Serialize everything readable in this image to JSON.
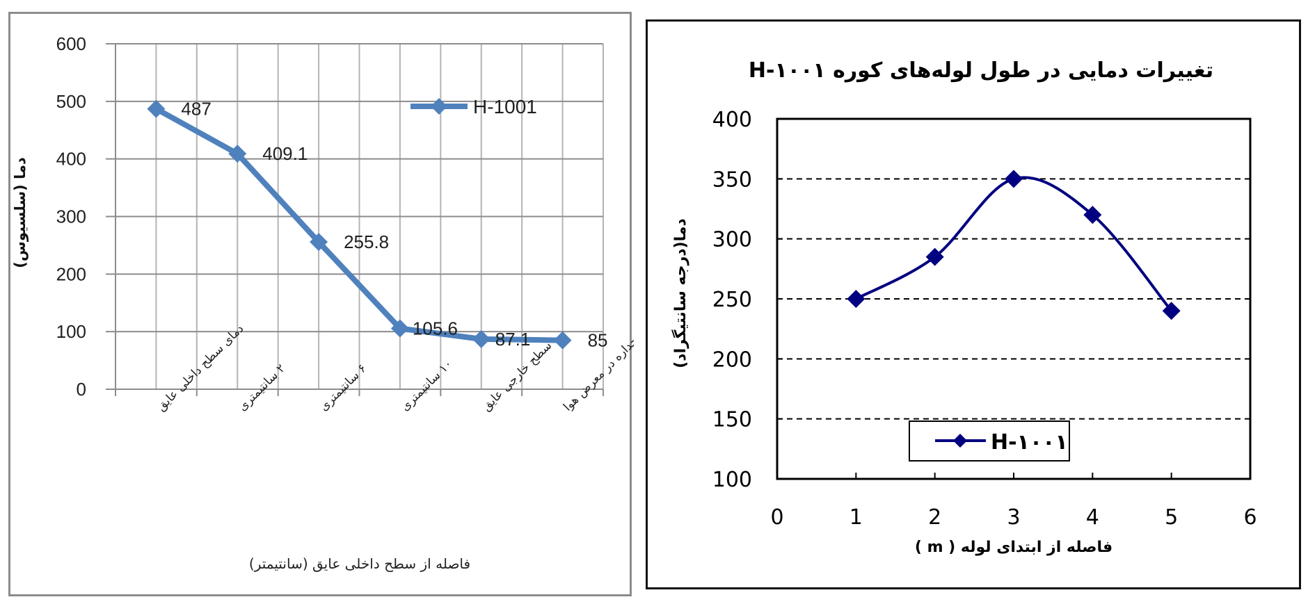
{
  "chart_data": [
    {
      "type": "line",
      "title": "",
      "xlabel": "فاصله از سطح داخلی عایق (سانتیمتر)",
      "ylabel": "دما (سلسیوس)",
      "categories": [
        "دمای سطح داخلی عایق",
        "۲ سانتیمتری",
        "۶ سانتیمتری",
        "۱۰ سانتیمتری",
        "سطح خارجی عایق",
        "جداره در معرض هوا"
      ],
      "series": [
        {
          "name": "H-1001",
          "values": [
            487,
            409.1,
            255.8,
            105.6,
            87.1,
            85
          ],
          "color": "#4F81BD"
        }
      ],
      "data_labels": [
        "487",
        "409.1",
        "255.8",
        "105.6",
        "87.1",
        "85"
      ],
      "ylim": [
        0,
        600
      ],
      "yticks": [
        0,
        100,
        200,
        300,
        400,
        500,
        600
      ],
      "grid": true,
      "legend_position": "upper-right-inside"
    },
    {
      "type": "line",
      "title": "تغییرات دمایی در طول لوله‌های کوره H-۱۰۰۱",
      "xlabel": "فاصله از ابتدای لوله ( m )",
      "ylabel": "دما(درجه سانتیگراد)",
      "x": [
        1,
        2,
        3,
        4,
        5
      ],
      "series": [
        {
          "name": "H-۱۰۰۱",
          "values": [
            250,
            285,
            350,
            320,
            240
          ],
          "color": "#000080"
        }
      ],
      "xlim": [
        0,
        6
      ],
      "xticks": [
        0,
        1,
        2,
        3,
        4,
        5,
        6
      ],
      "ylim": [
        100,
        400
      ],
      "yticks": [
        100,
        150,
        200,
        250,
        300,
        350,
        400
      ],
      "grid": "horizontal-dashed",
      "smooth": true,
      "legend_position": "lower-center-inside"
    }
  ],
  "left_chart": {
    "legend_label": "H-1001",
    "xlabel": "فاصله از سطح داخلی عایق (سانتیمتر)",
    "ylabel": "دما (سلسیوس)"
  },
  "right_chart": {
    "title": "تغییرات دمایی در طول لوله‌های کوره H-۱۰۰۱",
    "legend_label": "H-۱۰۰۱",
    "xlabel": "فاصله از ابتدای لوله ( m )",
    "ylabel": "دما(درجه سانتیگراد)"
  }
}
